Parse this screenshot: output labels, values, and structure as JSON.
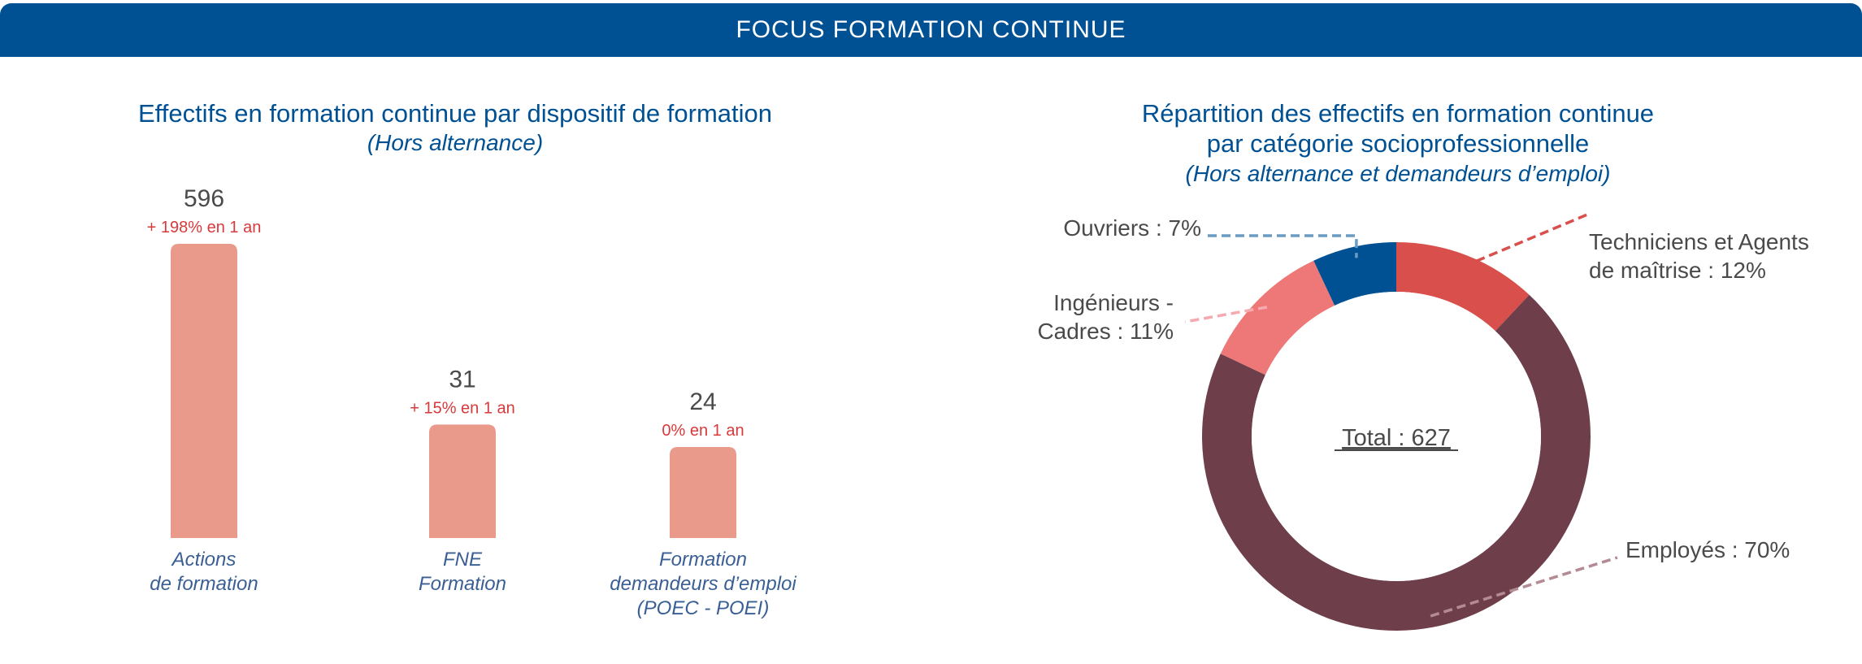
{
  "banner": {
    "title": "FOCUS FORMATION CONTINUE"
  },
  "left_panel": {
    "title": "Effectifs en formation continue par dispositif de formation",
    "subtitle": "(Hors alternance)"
  },
  "right_panel": {
    "title_line1": "Répartition des effectifs en formation continue",
    "title_line2": "par catégorie socioprofessionnelle",
    "subtitle": "(Hors alternance et demandeurs d’emploi)"
  },
  "colors": {
    "banner": "#005193",
    "title": "#005193",
    "bar": "#e99a8b",
    "change": "#d8393b",
    "value": "#4a4a4a",
    "category": "#3a5f94"
  },
  "chart_data": [
    {
      "type": "bar",
      "title": "Effectifs en formation continue par dispositif de formation",
      "subtitle": "(Hors alternance)",
      "categories": [
        [
          "Actions",
          "de formation"
        ],
        [
          "FNE",
          "Formation"
        ],
        [
          "Formation",
          "demandeurs d’emploi",
          "(POEC - POEI)"
        ]
      ],
      "values": [
        596,
        31,
        24
      ],
      "value_labels": [
        "596",
        "31",
        "24"
      ],
      "changes": [
        "+ 198% en 1 an",
        "+ 15% en 1 an",
        "0% en 1 an"
      ],
      "grid": false,
      "axes_visible": false
    },
    {
      "type": "pie",
      "donut": true,
      "title": "Répartition des effectifs en formation continue par catégorie socioprofessionnelle",
      "subtitle": "(Hors alternance et demandeurs d’emploi)",
      "center_label": "Total : 627",
      "total": 627,
      "slices": [
        {
          "lines": [
            "Techniciens et Agents",
            "de maîtrise : 12%"
          ],
          "value": 12,
          "color": "#d94f4b",
          "leader_color": "#d94f4b",
          "side": "right"
        },
        {
          "lines": [
            "Employés : 70%"
          ],
          "value": 70,
          "color": "#6e3f4b",
          "leader_color": "#b48a94",
          "side": "right"
        },
        {
          "lines": [
            "Ingénieurs -",
            "Cadres : 11%"
          ],
          "value": 11,
          "color": "#ee7777",
          "leader_color": "#f4aab0",
          "side": "left"
        },
        {
          "lines": [
            "Ouvriers : 7%"
          ],
          "value": 7,
          "color": "#005193",
          "leader_color": "#6a9cc4",
          "side": "left"
        }
      ]
    }
  ]
}
